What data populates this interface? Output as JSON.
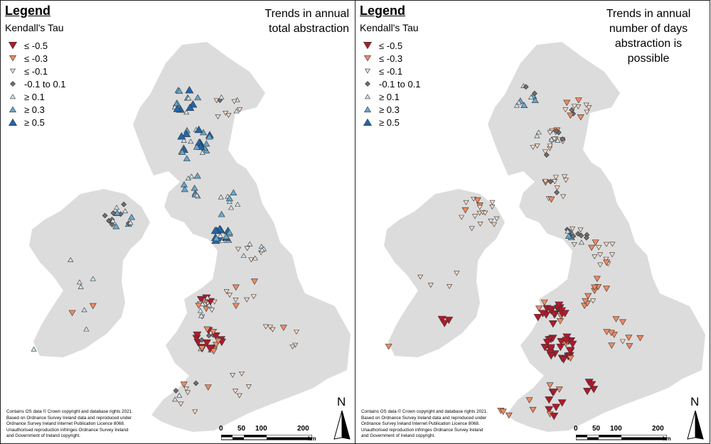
{
  "colors": {
    "land": "#dcdcdc",
    "strong_decrease": "#b2182b",
    "moderate_decrease": "#ef8a62",
    "weak_decrease": "#fddbc7",
    "no_trend": "#6e6e6e",
    "weak_increase": "#d1e5f0",
    "moderate_increase": "#67a9cf",
    "strong_increase": "#2166ac"
  },
  "icons": {
    "north_arrow": "north-arrow-icon",
    "legend_symbols": "triangle-marker-icon"
  },
  "legend": {
    "title": "Legend",
    "subtitle": "Kendall's Tau",
    "classes": [
      {
        "label": "≤ -0.5",
        "shape": "down-large",
        "color_key": "strong_decrease"
      },
      {
        "label": "≤ -0.3",
        "shape": "down-medium",
        "color_key": "moderate_decrease"
      },
      {
        "label": "≤ -0.1",
        "shape": "down-small",
        "color_key": "weak_decrease"
      },
      {
        "label": "-0.1 to 0.1",
        "shape": "diamond",
        "color_key": "no_trend"
      },
      {
        "label": "≥ 0.1",
        "shape": "up-small",
        "color_key": "weak_increase"
      },
      {
        "label": "≥ 0.3",
        "shape": "up-medium",
        "color_key": "moderate_increase"
      },
      {
        "label": "≥ 0.5",
        "shape": "up-large",
        "color_key": "strong_increase"
      }
    ]
  },
  "panels": [
    {
      "title_lines": [
        "Trends in annual",
        "total abstraction"
      ]
    },
    {
      "title_lines": [
        "Trends in annual",
        "number of days",
        "abstraction is",
        "possible"
      ]
    }
  ],
  "credit_lines": [
    "Contains OS data © Crown copyright and database rights 2021.",
    "Based on Ordnance Survey Ireland data and reproduced under",
    "Ordnance Survey Ireland Internet Publication Licence 8068.",
    "Unauthorised reproduction infringes Ordnance Survey Ireland",
    "and Government of Ireland copyright."
  ],
  "scale_bar": {
    "ticks": [
      "0",
      "50",
      "100",
      "200"
    ],
    "unit": "km"
  },
  "north_label": "N"
}
